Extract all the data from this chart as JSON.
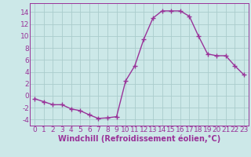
{
  "x": [
    0,
    1,
    2,
    3,
    4,
    5,
    6,
    7,
    8,
    9,
    10,
    11,
    12,
    13,
    14,
    15,
    16,
    17,
    18,
    19,
    20,
    21,
    22,
    23
  ],
  "y": [
    -0.5,
    -1.0,
    -1.5,
    -1.5,
    -2.2,
    -2.5,
    -3.2,
    -3.8,
    -3.7,
    -3.5,
    2.5,
    5.0,
    9.5,
    13.0,
    14.2,
    14.2,
    14.2,
    13.3,
    10.0,
    7.0,
    6.7,
    6.7,
    5.0,
    3.5
  ],
  "line_color": "#993399",
  "marker": "+",
  "marker_size": 4,
  "bg_color": "#cce8e8",
  "grid_color": "#aacccc",
  "xlabel": "Windchill (Refroidissement éolien,°C)",
  "xlim": [
    -0.5,
    23.5
  ],
  "ylim": [
    -5,
    15.5
  ],
  "yticks": [
    -4,
    -2,
    0,
    2,
    4,
    6,
    8,
    10,
    12,
    14
  ],
  "xticks": [
    0,
    1,
    2,
    3,
    4,
    5,
    6,
    7,
    8,
    9,
    10,
    11,
    12,
    13,
    14,
    15,
    16,
    17,
    18,
    19,
    20,
    21,
    22,
    23
  ],
  "tick_fontsize": 6.5,
  "xlabel_fontsize": 7,
  "line_width": 1.0
}
